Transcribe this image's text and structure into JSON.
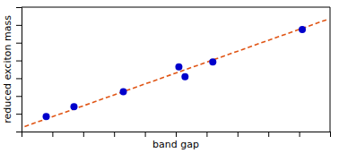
{
  "chart_data": {
    "type": "scatter",
    "xlabel": "band gap",
    "ylabel": "reduced exciton mass",
    "series": [
      {
        "type": "scatter",
        "color": "#0000cc",
        "marker": "circle",
        "x": [
          0.08,
          0.17,
          0.33,
          0.51,
          0.53,
          0.62,
          0.91
        ],
        "values": [
          0.12,
          0.2,
          0.32,
          0.52,
          0.44,
          0.56,
          0.82
        ]
      },
      {
        "type": "line",
        "color": "#e05515",
        "line_style": "dashed",
        "x": [
          0.01,
          0.99
        ],
        "values": [
          0.04,
          0.9
        ]
      }
    ],
    "xlim": [
      0.0,
      1.0
    ],
    "ylim": [
      0.0,
      1.0
    ],
    "xticks": [
      0,
      0.1,
      0.2,
      0.3,
      0.4,
      0.5,
      0.6,
      0.7,
      0.8,
      0.9,
      1
    ],
    "yticks": [
      0,
      0.14285714285714285,
      0.2857142857142857,
      0.42857142857142855,
      0.5714285714285714,
      0.7142857142857142,
      0.8571428571428571,
      1
    ],
    "tick_labels": false,
    "grid": false
  }
}
